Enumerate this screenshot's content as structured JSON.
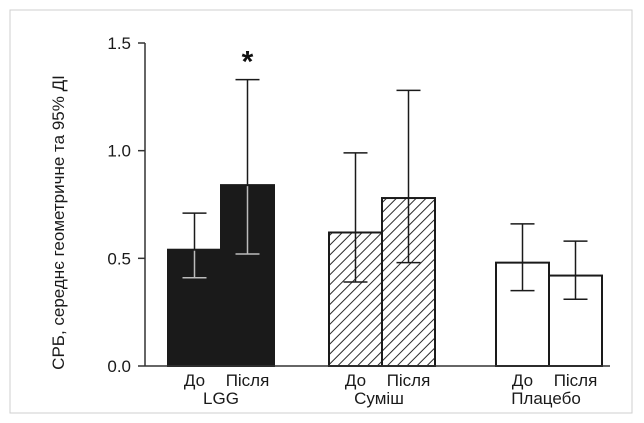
{
  "chart_data": {
    "type": "bar",
    "ylabel": "СРБ, середнє геометричне та 95% ДІ",
    "ylim": [
      0,
      1.5
    ],
    "yticks": [
      0.0,
      0.5,
      1.0,
      1.5
    ],
    "ytick_labels": [
      "0.0",
      "0.5",
      "1.0",
      "1.5"
    ],
    "groups": [
      {
        "name": "LGG",
        "pattern": "solid",
        "color": "#1a1a1a",
        "bars": [
          {
            "label": "До",
            "value": 0.54,
            "ci_low": 0.41,
            "ci_high": 0.71
          },
          {
            "label": "Після",
            "value": 0.84,
            "ci_low": 0.52,
            "ci_high": 1.33,
            "annotation": "*"
          }
        ]
      },
      {
        "name": "Суміш",
        "pattern": "hatched",
        "color": "#1a1a1a",
        "bars": [
          {
            "label": "До",
            "value": 0.62,
            "ci_low": 0.39,
            "ci_high": 0.99
          },
          {
            "label": "Після",
            "value": 0.78,
            "ci_low": 0.48,
            "ci_high": 1.28
          }
        ]
      },
      {
        "name": "Плацебо",
        "pattern": "open",
        "color": "#1a1a1a",
        "bars": [
          {
            "label": "До",
            "value": 0.48,
            "ci_low": 0.35,
            "ci_high": 0.66
          },
          {
            "label": "Після",
            "value": 0.42,
            "ci_low": 0.31,
            "ci_high": 0.58
          }
        ]
      }
    ]
  }
}
